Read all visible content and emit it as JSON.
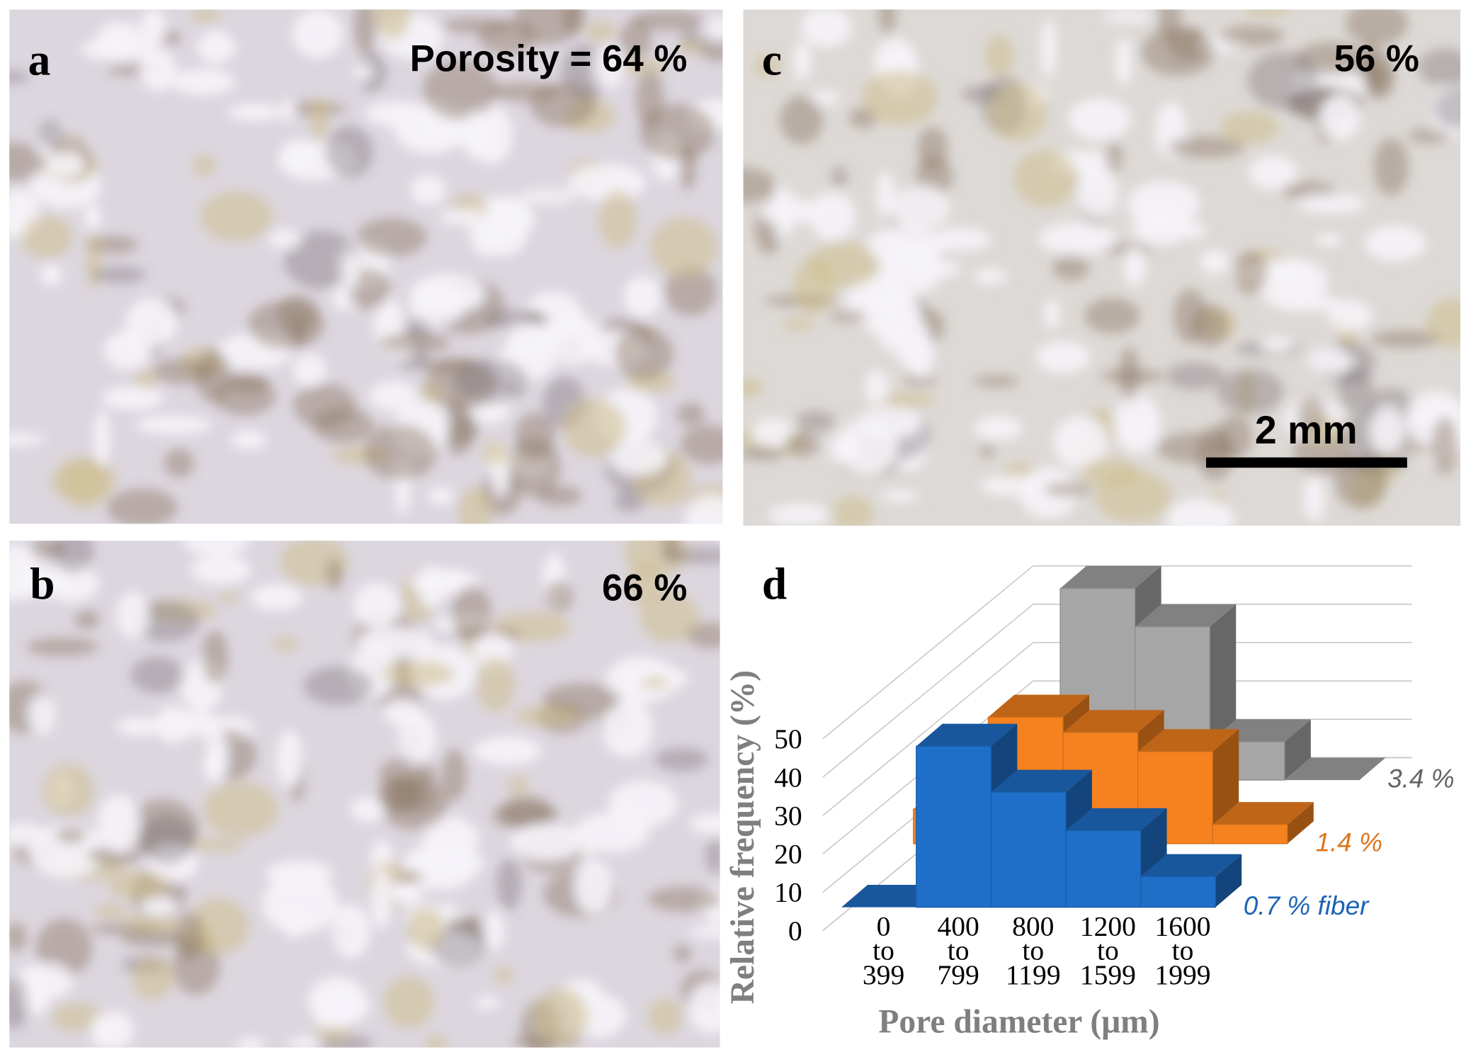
{
  "panels": [
    {
      "letter": "a",
      "label": "Porosity = 64 %"
    },
    {
      "letter": "b",
      "label": "66 %"
    },
    {
      "letter": "c",
      "label": "56 %",
      "scale_bar": "2 mm"
    },
    {
      "letter": "d"
    }
  ],
  "chart_data": {
    "type": "bar3d",
    "xlabel": "Pore diameter (μm)",
    "ylabel": "Relative frequency (%)",
    "categories": [
      "0 to 399",
      "400 to 799",
      "800 to 1199",
      "1200 to 1599",
      "1600 to 1999"
    ],
    "series": [
      {
        "name": "0.7 % fiber",
        "color": "#1f6fc8",
        "values": [
          0,
          42,
          30,
          20,
          8
        ]
      },
      {
        "name": "1.4 %",
        "color": "#f5821f",
        "values": [
          9,
          33,
          29,
          24,
          5
        ]
      },
      {
        "name": "3.4 %",
        "color": "#a6a6a6",
        "values": [
          0,
          50,
          40,
          10,
          0
        ]
      }
    ],
    "ylim": [
      0,
      50
    ],
    "yticks": [
      0,
      10,
      20,
      30,
      40,
      50
    ],
    "grid": true
  }
}
